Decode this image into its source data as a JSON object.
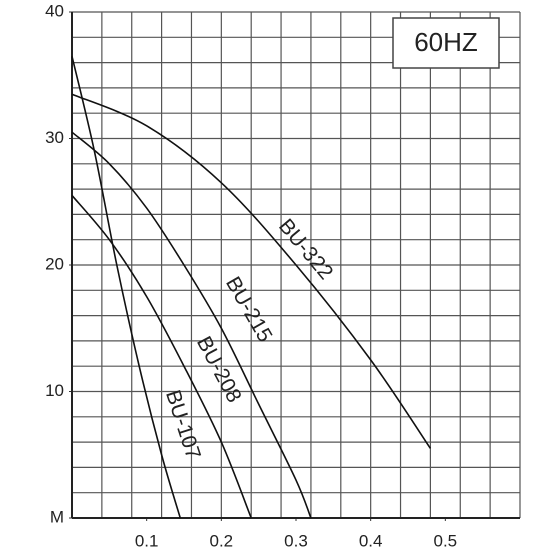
{
  "chart_data": {
    "type": "line",
    "annotation": "60HZ",
    "xlim": [
      0,
      0.6
    ],
    "xticks": [
      0.1,
      0.2,
      0.3,
      0.4,
      0.5
    ],
    "ylim": [
      0,
      40
    ],
    "yticks": [
      {
        "value": 0,
        "label": "M"
      },
      10,
      20,
      30,
      40
    ],
    "grid": true,
    "xgrid_step": 0.04,
    "ygrid_step": 2,
    "series": [
      {
        "name": "BU-322",
        "color": "#111111",
        "x": [
          0,
          0.1,
          0.2,
          0.3,
          0.4,
          0.48
        ],
        "values": [
          33.5,
          31,
          26.5,
          20,
          12.5,
          5.5
        ]
      },
      {
        "name": "BU-215",
        "color": "#111111",
        "x": [
          0,
          0.05,
          0.1,
          0.15,
          0.2,
          0.25,
          0.3,
          0.32
        ],
        "values": [
          30.5,
          28,
          24.5,
          20,
          15,
          9,
          3,
          0
        ]
      },
      {
        "name": "BU-208",
        "color": "#111111",
        "x": [
          0,
          0.05,
          0.1,
          0.15,
          0.2,
          0.24
        ],
        "values": [
          25.5,
          22,
          17.5,
          12,
          6,
          0
        ]
      },
      {
        "name": "BU-107",
        "color": "#111111",
        "x": [
          0,
          0.03,
          0.06,
          0.09,
          0.12,
          0.145
        ],
        "values": [
          36.5,
          29,
          20,
          12,
          5,
          0
        ]
      }
    ]
  }
}
